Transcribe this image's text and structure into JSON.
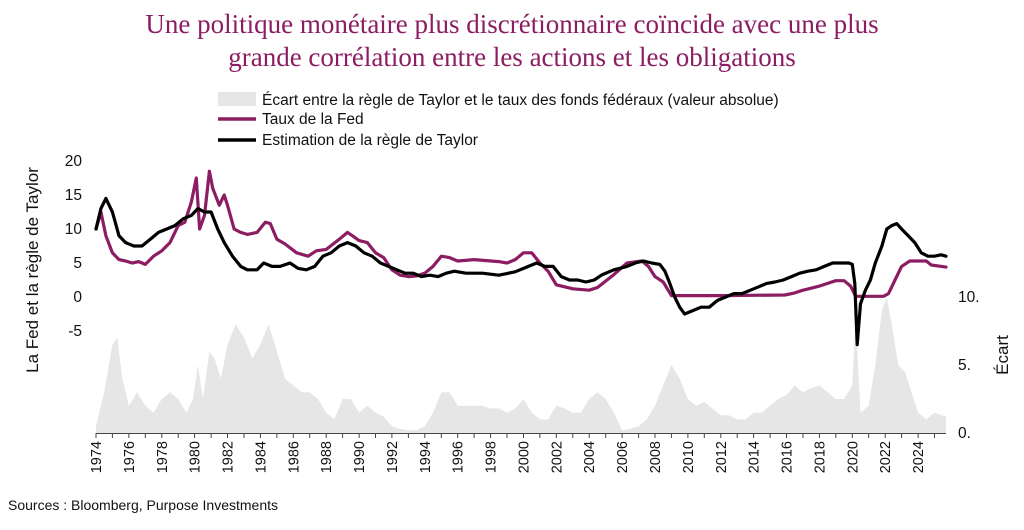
{
  "title_lines": [
    "Une politique monétaire plus discrétionnaire coïncide avec une plus",
    "grande corrélation entre les actions et les obligations"
  ],
  "source": "Sources : Bloomberg, Purpose Investments",
  "colors": {
    "fed": "#8c1d63",
    "taylor": "#000000",
    "gap": "#e6e6e6",
    "title": "#8c1d63"
  },
  "chart_data": {
    "type": "line",
    "title": "Une politique monétaire plus discrétionnaire coïncide avec une plus grande corrélation entre les actions et les obligations",
    "ylabel": "La Fed et la règle de Taylor",
    "y2label": "Écart",
    "xlim": [
      1974,
      2025.7
    ],
    "ylim": [
      -20,
      20
    ],
    "y2lim": [
      0,
      20
    ],
    "y_ticks": [
      "20",
      "15",
      "10",
      "5",
      "0",
      "-5"
    ],
    "y2_ticks": [
      "10.",
      "5.",
      "0."
    ],
    "x_ticks": [
      "1974",
      "1976",
      "1978",
      "1980",
      "1982",
      "1984",
      "1986",
      "1988",
      "1990",
      "1992",
      "1994",
      "1996",
      "1998",
      "2000",
      "2002",
      "2004",
      "2006",
      "2008",
      "2010",
      "2012",
      "2014",
      "2016",
      "2018",
      "2020",
      "2022",
      "2024"
    ],
    "legend": [
      "Écart entre la règle de Taylor et le taux des fonds fédéraux (valeur absolue)",
      "Taux de la Fed",
      "Estimation de la règle de Taylor"
    ],
    "legend_position": "top",
    "series": [
      {
        "name": "Taux de la Fed",
        "type": "line",
        "axis": "left",
        "x": [
          1974.0,
          1974.3,
          1974.6,
          1975.0,
          1975.4,
          1975.8,
          1976.2,
          1976.6,
          1977.0,
          1977.5,
          1978.0,
          1978.5,
          1979.0,
          1979.4,
          1979.8,
          1980.1,
          1980.3,
          1980.6,
          1980.9,
          1981.1,
          1981.5,
          1981.8,
          1982.0,
          1982.4,
          1982.8,
          1983.2,
          1983.8,
          1984.3,
          1984.6,
          1985.0,
          1985.5,
          1986.2,
          1986.9,
          1987.4,
          1988.0,
          1988.8,
          1989.3,
          1989.6,
          1990.0,
          1990.5,
          1991.0,
          1991.5,
          1992.0,
          1992.5,
          1993.0,
          1993.5,
          1994.0,
          1994.5,
          1995.0,
          1995.5,
          1996.0,
          1997.0,
          1998.5,
          1999.0,
          1999.5,
          2000.0,
          2000.5,
          2001.0,
          2001.5,
          2002.0,
          2003.0,
          2004.0,
          2004.5,
          2005.5,
          2006.3,
          2007.2,
          2007.6,
          2008.0,
          2008.5,
          2009.0,
          2012.0,
          2015.9,
          2016.5,
          2017.0,
          2017.5,
          2018.0,
          2018.5,
          2019.0,
          2019.5,
          2019.9,
          2020.2,
          2021.9,
          2022.2,
          2022.6,
          2023.0,
          2023.5,
          2024.5,
          2024.8,
          2025.7
        ],
        "y": [
          10,
          12.5,
          9,
          6.5,
          5.5,
          5.3,
          5.0,
          5.2,
          4.8,
          6,
          6.8,
          8,
          10.5,
          11,
          14,
          17.5,
          10,
          12,
          18.5,
          16,
          13.5,
          15,
          13.5,
          10,
          9.5,
          9.2,
          9.5,
          11,
          10.8,
          8.5,
          7.8,
          6.5,
          6,
          6.8,
          7,
          8.5,
          9.5,
          9,
          8.3,
          8,
          6.5,
          5.8,
          4,
          3.2,
          3,
          3.1,
          3.5,
          4.5,
          6,
          5.8,
          5.3,
          5.5,
          5.2,
          5,
          5.5,
          6.5,
          6.5,
          5,
          3.8,
          1.8,
          1.2,
          1,
          1.4,
          3.3,
          5,
          5.3,
          4.5,
          3,
          2.2,
          0.2,
          0.2,
          0.3,
          0.6,
          1,
          1.3,
          1.6,
          2,
          2.4,
          2.4,
          1.6,
          0.1,
          0.1,
          0.5,
          2.5,
          4.5,
          5.3,
          5.3,
          4.7,
          4.4
        ]
      },
      {
        "name": "Estimation de la règle de Taylor",
        "type": "line",
        "axis": "left",
        "x": [
          1974.0,
          1974.3,
          1974.6,
          1975.0,
          1975.4,
          1975.8,
          1976.3,
          1976.8,
          1977.3,
          1977.8,
          1978.3,
          1978.8,
          1979.3,
          1979.8,
          1980.2,
          1980.6,
          1981.0,
          1981.4,
          1981.8,
          1982.3,
          1982.8,
          1983.2,
          1983.8,
          1984.2,
          1984.7,
          1985.2,
          1985.8,
          1986.3,
          1986.8,
          1987.3,
          1987.8,
          1988.3,
          1988.8,
          1989.3,
          1989.8,
          1990.3,
          1990.8,
          1991.3,
          1991.8,
          1992.3,
          1992.8,
          1993.3,
          1993.8,
          1994.3,
          1994.8,
          1995.3,
          1995.8,
          1996.5,
          1997.5,
          1998.5,
          1999.5,
          2000.3,
          2000.8,
          2001.3,
          2001.8,
          2002.3,
          2002.8,
          2003.3,
          2003.8,
          2004.3,
          2004.8,
          2005.5,
          2006.3,
          2006.8,
          2007.3,
          2007.8,
          2008.3,
          2008.6,
          2008.9,
          2009.2,
          2009.5,
          2009.8,
          2010.3,
          2010.8,
          2011.3,
          2011.8,
          2012.3,
          2012.8,
          2013.3,
          2013.8,
          2014.3,
          2014.8,
          2015.3,
          2015.8,
          2016.3,
          2016.8,
          2017.3,
          2017.8,
          2018.3,
          2018.8,
          2019.3,
          2019.8,
          2020.0,
          2020.15,
          2020.3,
          2020.5,
          2020.8,
          2021.1,
          2021.4,
          2021.8,
          2022.1,
          2022.4,
          2022.7,
          2023.0,
          2023.4,
          2023.8,
          2024.2,
          2024.6,
          2025.0,
          2025.4,
          2025.7
        ],
        "y": [
          10,
          13,
          14.5,
          12.5,
          9,
          8,
          7.5,
          7.5,
          8.5,
          9.5,
          10,
          10.5,
          11.5,
          12,
          13,
          12.5,
          12.5,
          10,
          8,
          6,
          4.5,
          4,
          4,
          5,
          4.5,
          4.5,
          5,
          4.2,
          4,
          4.5,
          6,
          6.5,
          7.5,
          8,
          7.5,
          6.5,
          6,
          5,
          4.5,
          4,
          3.5,
          3.5,
          3,
          3.2,
          3,
          3.5,
          3.8,
          3.5,
          3.5,
          3.2,
          3.7,
          4.5,
          5,
          4.5,
          4.5,
          3,
          2.5,
          2.5,
          2.2,
          2.5,
          3.3,
          4,
          4.5,
          5,
          5.3,
          5,
          4.8,
          3.8,
          2,
          0,
          -1.5,
          -2.5,
          -2,
          -1.5,
          -1.5,
          -0.5,
          0,
          0.5,
          0.5,
          1,
          1.5,
          2,
          2.2,
          2.5,
          3,
          3.5,
          3.8,
          4,
          4.5,
          5,
          5,
          5,
          4.8,
          2,
          -7,
          -1,
          1,
          2.5,
          5,
          7.5,
          10,
          10.5,
          10.8,
          10,
          9,
          8,
          6.5,
          6,
          6,
          6.2,
          6
        ]
      },
      {
        "name": "Écart entre la règle de Taylor et le taux des fonds fédéraux (valeur absolue)",
        "type": "area",
        "axis": "right",
        "x": [
          1974.0,
          1974.5,
          1975.0,
          1975.3,
          1975.6,
          1976.0,
          1976.5,
          1977.0,
          1977.5,
          1978.0,
          1978.5,
          1979.0,
          1979.5,
          1979.9,
          1980.2,
          1980.5,
          1980.9,
          1981.2,
          1981.6,
          1982.0,
          1982.5,
          1983.0,
          1983.5,
          1984.0,
          1984.5,
          1985.0,
          1985.5,
          1986.0,
          1986.5,
          1987.0,
          1987.5,
          1988.0,
          1988.5,
          1989.0,
          1989.5,
          1990.0,
          1990.5,
          1991.0,
          1991.5,
          1992.0,
          1992.5,
          1993.0,
          1993.5,
          1994.0,
          1994.5,
          1995.0,
          1995.5,
          1996.0,
          1996.5,
          1997.0,
          1997.5,
          1998.0,
          1998.5,
          1999.0,
          1999.5,
          2000.0,
          2000.5,
          2001.0,
          2001.5,
          2002.0,
          2002.5,
          2003.0,
          2003.5,
          2004.0,
          2004.5,
          2005.0,
          2005.5,
          2006.0,
          2006.5,
          2007.0,
          2007.5,
          2008.0,
          2008.5,
          2009.0,
          2009.5,
          2010.0,
          2010.5,
          2011.0,
          2011.5,
          2012.0,
          2012.5,
          2013.0,
          2013.5,
          2014.0,
          2014.5,
          2015.0,
          2015.5,
          2016.0,
          2016.5,
          2017.0,
          2017.5,
          2018.0,
          2018.5,
          2019.0,
          2019.5,
          2020.0,
          2020.2,
          2020.5,
          2021.0,
          2021.4,
          2021.8,
          2022.1,
          2022.4,
          2022.8,
          2023.2,
          2023.6,
          2024.0,
          2024.5,
          2025.0,
          2025.7
        ],
        "y": [
          0.5,
          3,
          6.5,
          7,
          4,
          2,
          3,
          2,
          1.5,
          2.5,
          3,
          2.5,
          1.5,
          2.5,
          5,
          2.5,
          6,
          5.5,
          4,
          6.5,
          8,
          7,
          5.5,
          6.5,
          8,
          6,
          4,
          3.5,
          3,
          3,
          2.5,
          1.5,
          1,
          2.5,
          2.5,
          1.5,
          2,
          1.5,
          1.2,
          0.5,
          0.3,
          0.2,
          0.2,
          0.5,
          1.5,
          3,
          3,
          2,
          2,
          2,
          2,
          1.8,
          1.8,
          1.5,
          1.8,
          2.5,
          1.5,
          1,
          1,
          2,
          1.8,
          1.5,
          1.5,
          2.5,
          3,
          2.5,
          1.5,
          0.2,
          0.3,
          0.5,
          1,
          2,
          3.5,
          5,
          4,
          2.5,
          2,
          2.3,
          1.8,
          1.3,
          1.3,
          1,
          1,
          1.5,
          1.5,
          2,
          2.5,
          2.8,
          3.5,
          3,
          3.3,
          3.5,
          3,
          2.5,
          2.5,
          3.5,
          8.5,
          1.5,
          2,
          5,
          9,
          10,
          8,
          5,
          4.5,
          3,
          1.5,
          1,
          1.5,
          1.2
        ]
      }
    ]
  }
}
